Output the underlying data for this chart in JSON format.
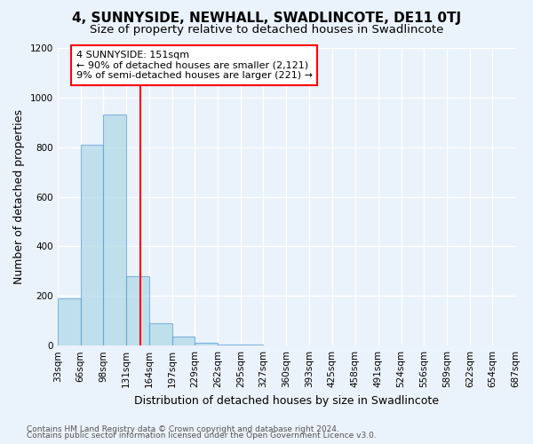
{
  "title": "4, SUNNYSIDE, NEWHALL, SWADLINCOTE, DE11 0TJ",
  "subtitle": "Size of property relative to detached houses in Swadlincote",
  "xlabel": "Distribution of detached houses by size in Swadlincote",
  "ylabel": "Number of detached properties",
  "footnote1": "Contains HM Land Registry data © Crown copyright and database right 2024.",
  "footnote2": "Contains public sector information licensed under the Open Government Licence v3.0.",
  "bar_color": "#add8e6",
  "bar_edge_color": "#5b9bd5",
  "bar_alpha": 0.7,
  "redline_x": 151,
  "redline_color": "red",
  "annotation_text": "4 SUNNYSIDE: 151sqm\n← 90% of detached houses are smaller (2,121)\n9% of semi-detached houses are larger (221) →",
  "annotation_box_color": "white",
  "annotation_border_color": "red",
  "bins": [
    33,
    66,
    98,
    131,
    164,
    197,
    229,
    262,
    295,
    327,
    360,
    393,
    425,
    458,
    491,
    524,
    556,
    589,
    622,
    654,
    687
  ],
  "bin_labels": [
    "33sqm",
    "66sqm",
    "98sqm",
    "131sqm",
    "164sqm",
    "197sqm",
    "229sqm",
    "262sqm",
    "295sqm",
    "327sqm",
    "360sqm",
    "393sqm",
    "425sqm",
    "458sqm",
    "491sqm",
    "524sqm",
    "556sqm",
    "589sqm",
    "622sqm",
    "654sqm",
    "687sqm"
  ],
  "counts": [
    190,
    810,
    930,
    280,
    90,
    35,
    12,
    5,
    3,
    0,
    0,
    0,
    0,
    0,
    0,
    0,
    0,
    0,
    0,
    0
  ],
  "ylim": [
    0,
    1200
  ],
  "yticks": [
    0,
    200,
    400,
    600,
    800,
    1000,
    1200
  ],
  "background_color": "#eaf2fb",
  "plot_bg_color": "#eaf2fb",
  "grid_color": "white",
  "title_fontsize": 11,
  "subtitle_fontsize": 9.5,
  "axis_label_fontsize": 9,
  "tick_fontsize": 7.5,
  "footnote_fontsize": 6.5,
  "annotation_fontsize": 8
}
